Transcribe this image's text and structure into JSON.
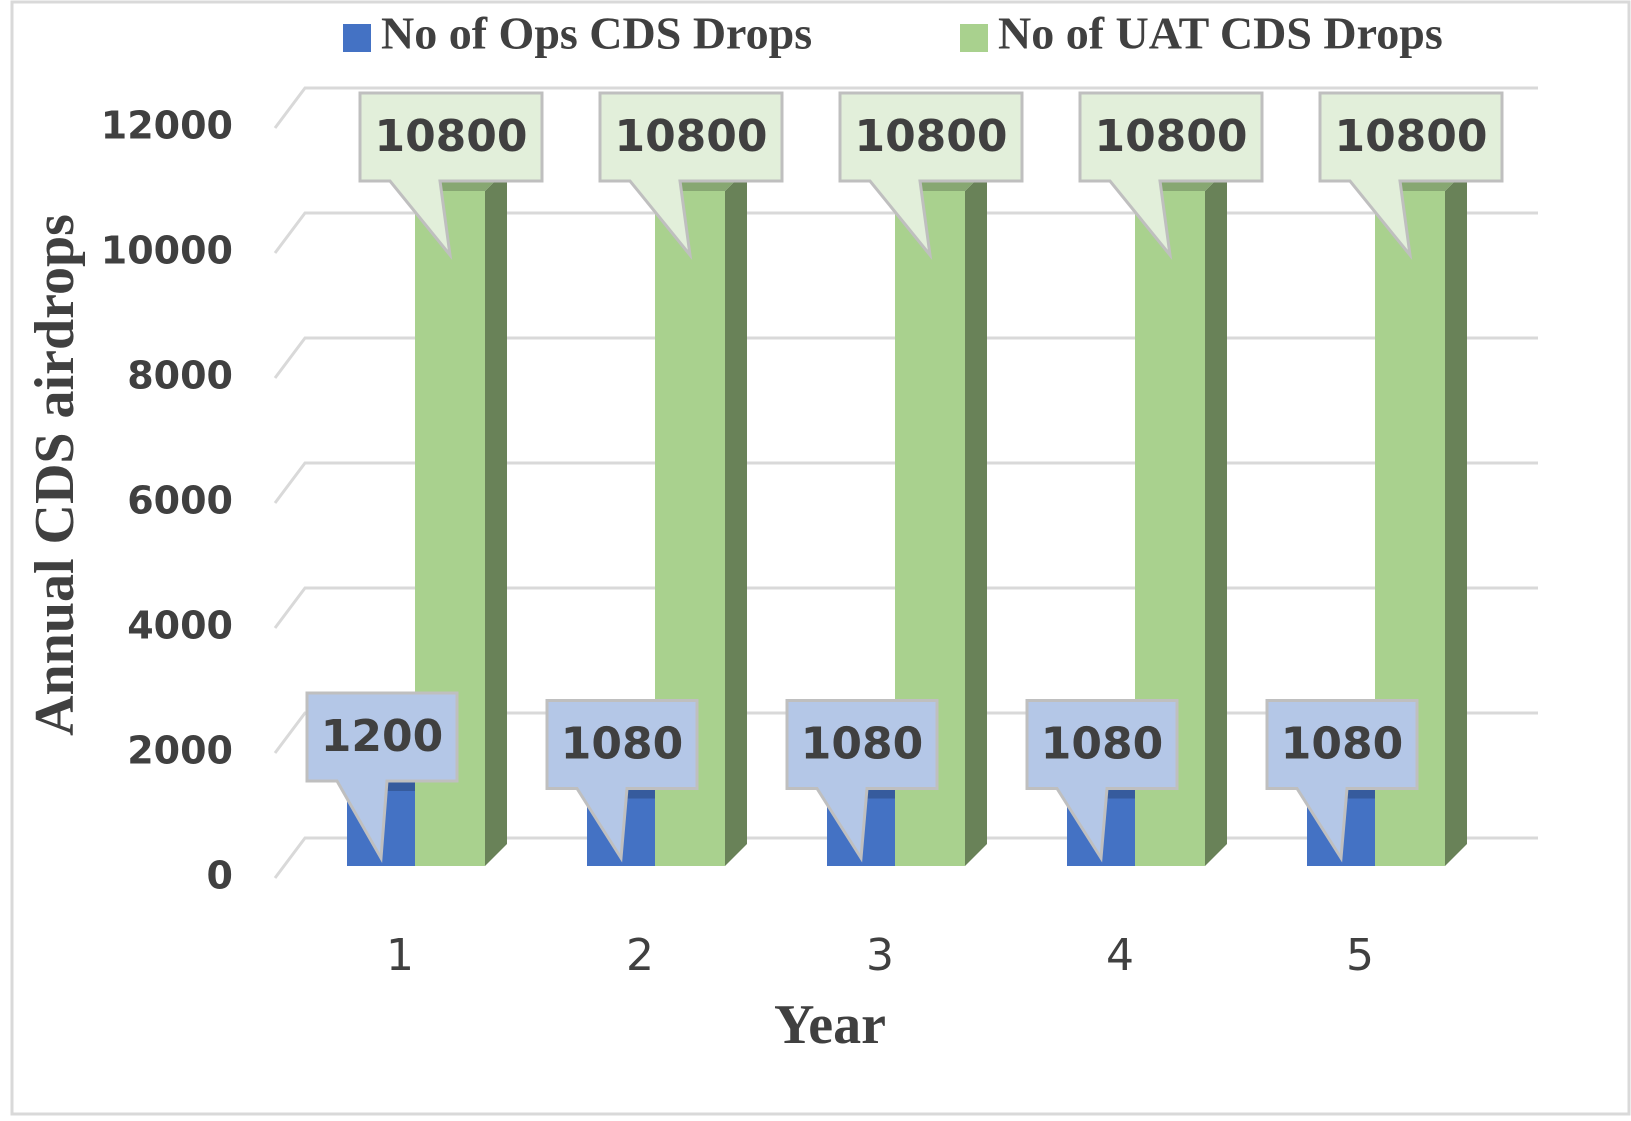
{
  "chart_data": {
    "type": "bar3d",
    "categories": [
      "1",
      "2",
      "3",
      "4",
      "5"
    ],
    "series": [
      {
        "name": "No of Ops CDS Drops",
        "color": "#4472c4",
        "values": [
          1200,
          1080,
          1080,
          1080,
          1080
        ]
      },
      {
        "name": "No of UAT CDS Drops",
        "color": "#a9d18e",
        "values": [
          10800,
          10800,
          10800,
          10800,
          10800
        ]
      }
    ],
    "ylim": [
      0,
      12000
    ],
    "yticks": [
      0,
      2000,
      4000,
      6000,
      8000,
      10000,
      12000
    ],
    "y_label": "Annual CDS airdrops",
    "x_label": "Year",
    "grid": true,
    "legend": "top",
    "data_labels": true
  }
}
